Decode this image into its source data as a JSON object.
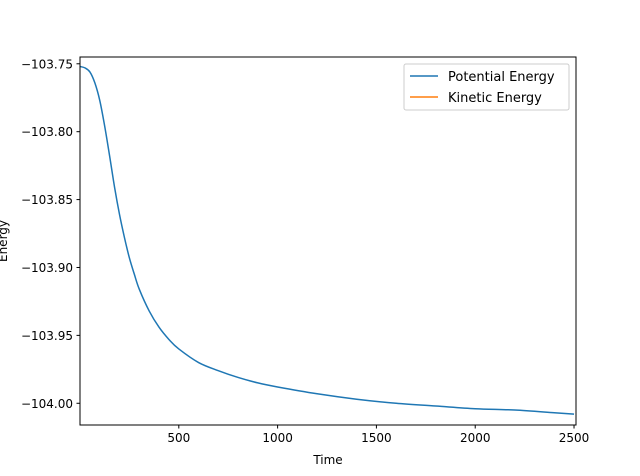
{
  "chart_data": {
    "type": "line",
    "title": "",
    "xlabel": "Time",
    "ylabel": "Energy",
    "xlim": [
      0,
      2510
    ],
    "ylim": [
      -104.016,
      -103.745
    ],
    "x_ticks": [
      500,
      1000,
      1500,
      2000,
      2500
    ],
    "x_tick_labels": [
      "500",
      "1000",
      "1500",
      "2000",
      "2500"
    ],
    "y_ticks": [
      -103.75,
      -103.8,
      -103.85,
      -103.9,
      -103.95,
      -104.0
    ],
    "y_tick_labels": [
      "−103.75",
      "−103.80",
      "−103.85",
      "−103.90",
      "−103.95",
      "−104.00"
    ],
    "grid": false,
    "legend_position": "top-right",
    "series": [
      {
        "name": "Potential Energy",
        "color": "#1f77b4",
        "x": [
          0,
          25,
          50,
          75,
          100,
          125,
          150,
          175,
          200,
          225,
          250,
          275,
          300,
          350,
          400,
          450,
          500,
          600,
          700,
          800,
          900,
          1000,
          1200,
          1400,
          1600,
          1800,
          2000,
          2200,
          2400,
          2500
        ],
        "y": [
          -103.752,
          -103.753,
          -103.756,
          -103.764,
          -103.777,
          -103.796,
          -103.818,
          -103.841,
          -103.861,
          -103.878,
          -103.893,
          -103.905,
          -103.916,
          -103.932,
          -103.944,
          -103.953,
          -103.96,
          -103.97,
          -103.976,
          -103.981,
          -103.985,
          -103.988,
          -103.993,
          -103.997,
          -104.0,
          -104.002,
          -104.004,
          -104.005,
          -104.007,
          -104.008
        ]
      },
      {
        "name": "Kinetic Energy",
        "color": "#ff7f0e",
        "x": [],
        "y": []
      }
    ]
  }
}
